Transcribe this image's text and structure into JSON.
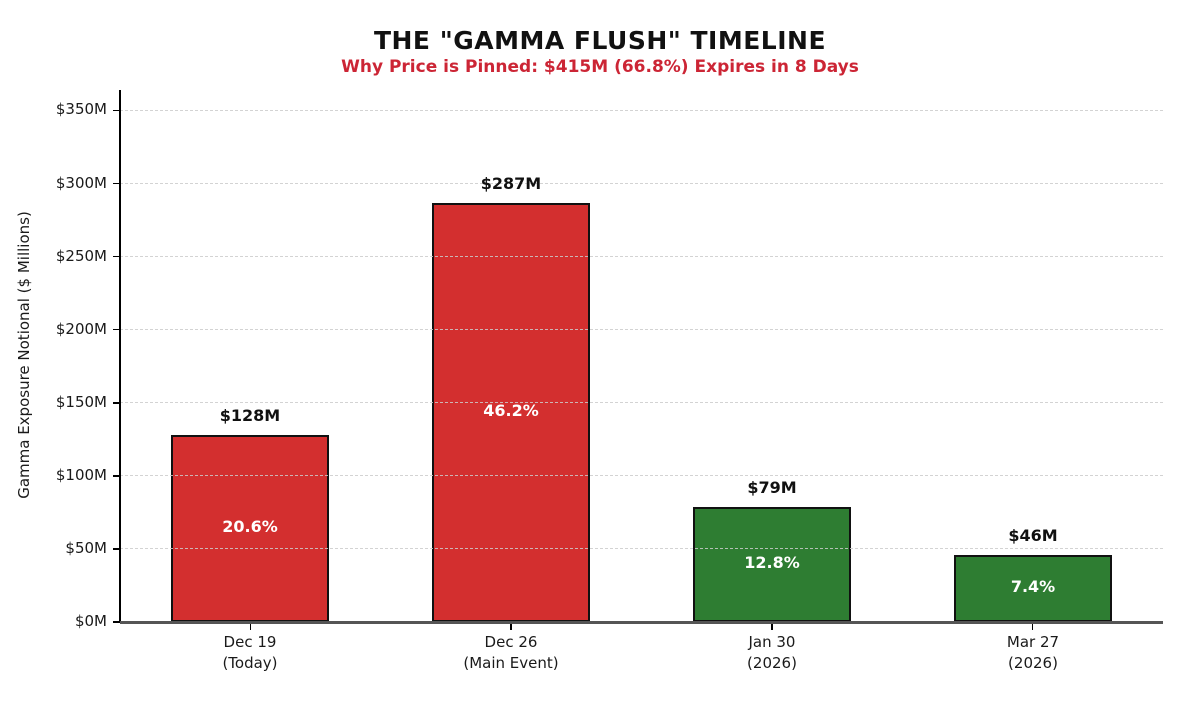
{
  "title": "THE \"GAMMA FLUSH\" TIMELINE",
  "subtitle": "Why Price is Pinned: $415M (66.8%) Expires in 8 Days",
  "colors": {
    "title": "#111111",
    "subtitle": "#cc2535",
    "bar_red": "#d32f2f",
    "bar_green": "#2e7d32",
    "bar_border": "#111111",
    "grid": "#cccccc",
    "axis_bottom": "#555555",
    "axis_left": "#000000",
    "tick_label": "#1a1a1a",
    "bar_value_label": "#111111",
    "bar_pct_label": "#ffffff"
  },
  "chart_data": {
    "type": "bar",
    "title": "THE \"GAMMA FLUSH\" TIMELINE",
    "subtitle": "Why Price is Pinned: $415M (66.8%) Expires in 8 Days",
    "xlabel": "",
    "ylabel": "Gamma Exposure Notional ($ Millions)",
    "ylim": [
      0,
      364
    ],
    "ytick_step": 50,
    "ytick_labels": [
      "$0M",
      "$50M",
      "$100M",
      "$150M",
      "$200M",
      "$250M",
      "$300M",
      "$350M"
    ],
    "grid": "horizontal-dashed",
    "legend": "none",
    "categories": [
      [
        "Dec 19",
        "(Today)"
      ],
      [
        "Dec 26",
        "(Main Event)"
      ],
      [
        "Jan 30",
        "(2026)"
      ],
      [
        "Mar 27",
        "(2026)"
      ]
    ],
    "values": [
      128,
      287,
      79,
      46
    ],
    "value_labels": [
      "$128M",
      "$287M",
      "$79M",
      "$46M"
    ],
    "pct_labels": [
      "20.6%",
      "46.2%",
      "12.8%",
      "7.4%"
    ],
    "bar_colors": [
      "red",
      "red",
      "green",
      "green"
    ]
  }
}
